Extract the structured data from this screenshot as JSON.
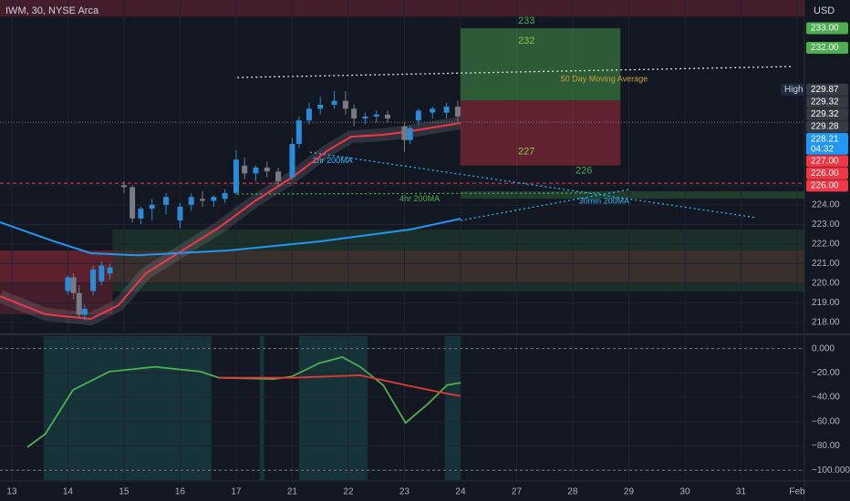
{
  "header": {
    "symbol": "IWM, 30, NYSE Arca",
    "currency": "USD"
  },
  "chart_data": [
    {
      "type": "candlestick",
      "xlim": [
        -0.21,
        14.13
      ],
      "ylim": [
        217.49,
        234.44
      ],
      "yticks": [
        {
          "value": 225,
          "label": "225.00"
        },
        {
          "value": 224,
          "label": "224.00"
        },
        {
          "value": 223,
          "label": "223.00"
        },
        {
          "value": 222,
          "label": "222.00"
        },
        {
          "value": 221,
          "label": "221.00"
        },
        {
          "value": 220,
          "label": "220.00"
        },
        {
          "value": 219,
          "label": "219.00"
        },
        {
          "value": 218,
          "label": "218.00"
        }
      ],
      "grid": true,
      "up_color": "#2a8cd8",
      "down_color": "#787b86",
      "zones": [
        {
          "x": [
            -0.21,
            14.13
          ],
          "y": [
            233.6,
            234.44
          ],
          "color": "rgba(242,54,69,0.22)"
        },
        {
          "x": [
            1.8,
            14.13
          ],
          "y": [
            219.58,
            222.73
          ],
          "color": "rgba(76,175,80,0.16)"
        },
        {
          "x": [
            -0.21,
            14.13
          ],
          "y": [
            220.04,
            221.67
          ],
          "color": "rgba(242,54,69,0.14)"
        },
        {
          "x": [
            -0.21,
            1.8
          ],
          "y": [
            218.42,
            221.67
          ],
          "color": "rgba(242,54,69,0.22)"
        },
        {
          "x": [
            8.0,
            14.13
          ],
          "y": [
            224.31,
            224.69
          ],
          "color": "rgba(76,175,80,0.25)"
        }
      ],
      "position": {
        "x": [
          8.0,
          10.85
        ],
        "entry": 229.32,
        "target": 233,
        "stop": 226,
        "target_color": "rgba(76,175,80,0.45)",
        "stop_color": "rgba(242,54,69,0.35)",
        "target_labels": [
          "233",
          "232"
        ],
        "stop_labels": [
          "227",
          "226"
        ]
      },
      "hlines": [
        {
          "value": 225.1,
          "color": "#f23645",
          "dash": "4 3"
        },
        {
          "value": 228.21,
          "color": "#787b86",
          "dash": "1 2"
        }
      ],
      "trendlines": [
        {
          "label": "50 Day Moving Average",
          "x": [
            4.02,
            13.93
          ],
          "values": [
            230.49,
            231.05
          ],
          "color": "#e0e3eb"
        },
        {
          "label": "1hr 200MA",
          "x": [
            5.32,
            13.28
          ],
          "values": [
            226.68,
            223.34
          ],
          "color": "#29b6f6"
        },
        {
          "label": "4hr 200MA",
          "x": [
            4.02,
            10.52
          ],
          "values": [
            224.55,
            224.6
          ],
          "color": "#4caf50"
        },
        {
          "label": "30min 200MA",
          "x": [
            8.0,
            11.01
          ],
          "values": [
            223.2,
            224.78
          ],
          "color": "#29b6f6"
        }
      ],
      "lines": [
        {
          "color": "#f23645",
          "x": [
            -0.21,
            0.6,
            1.41,
            1.9,
            2.39,
            3.04,
            3.69,
            4.35,
            4.99,
            5.64,
            6.05,
            6.62,
            7.02,
            8.0
          ],
          "values": [
            219.34,
            218.42,
            218.18,
            218.88,
            220.51,
            221.67,
            222.83,
            224.22,
            225.38,
            226.78,
            227.47,
            227.57,
            227.71,
            228.17
          ]
        },
        {
          "color": "#2196f3",
          "x": [
            -0.21,
            0.76,
            1.41,
            2.23,
            3.85,
            5.48,
            7.11,
            8.0
          ],
          "values": [
            223.11,
            222.13,
            221.53,
            221.43,
            221.67,
            222.13,
            222.74,
            223.29
          ]
        }
      ],
      "candles": {
        "x": [
          1.0,
          1.1,
          1.2,
          1.3,
          1.45,
          1.6,
          1.75,
          2.0,
          2.15,
          2.3,
          2.5,
          2.75,
          3.0,
          3.2,
          3.4,
          3.6,
          3.8,
          4.0,
          4.15,
          4.35,
          4.55,
          4.75,
          5.0,
          5.12,
          5.3,
          5.5,
          5.75,
          5.95,
          6.1,
          6.3,
          6.5,
          6.7,
          7.0,
          7.1,
          7.25,
          7.5,
          7.75,
          7.95
        ],
        "open": [
          219.6,
          220.3,
          219.5,
          218.4,
          219.6,
          220.1,
          220.5,
          225.0,
          224.9,
          223.3,
          223.8,
          224.0,
          223.2,
          224.0,
          224.3,
          224.2,
          224.3,
          224.6,
          226.0,
          225.6,
          225.9,
          225.7,
          225.4,
          227.1,
          228.3,
          228.9,
          229.1,
          229.3,
          228.9,
          228.4,
          228.5,
          228.6,
          228.0,
          227.3,
          228.3,
          228.7,
          228.7,
          229.0
        ],
        "high": [
          220.4,
          220.5,
          219.9,
          218.9,
          220.9,
          221.1,
          221.0,
          225.2,
          225.0,
          223.9,
          224.3,
          224.6,
          224.1,
          224.6,
          224.7,
          224.5,
          224.8,
          226.8,
          226.4,
          226.0,
          226.2,
          225.9,
          227.4,
          228.5,
          229.2,
          229.5,
          229.8,
          229.8,
          229.1,
          228.7,
          228.8,
          228.8,
          228.2,
          228.0,
          228.9,
          229.0,
          229.2,
          229.3
        ],
        "low": [
          219.4,
          219.2,
          218.2,
          218.1,
          219.4,
          219.9,
          220.2,
          224.6,
          223.1,
          223.0,
          223.2,
          223.5,
          222.8,
          223.7,
          223.9,
          223.9,
          224.1,
          224.5,
          225.3,
          225.2,
          225.4,
          224.9,
          225.3,
          226.9,
          228.1,
          228.6,
          228.9,
          228.6,
          228.0,
          228.1,
          228.2,
          228.2,
          226.7,
          227.1,
          228.1,
          228.4,
          228.4,
          228.2
        ],
        "close": [
          220.3,
          219.5,
          218.4,
          218.7,
          220.7,
          220.9,
          220.8,
          224.9,
          223.3,
          223.8,
          224.0,
          224.4,
          223.9,
          224.4,
          224.2,
          224.4,
          224.6,
          226.3,
          225.6,
          225.9,
          225.7,
          225.2,
          227.1,
          228.3,
          228.9,
          229.1,
          229.3,
          228.9,
          228.4,
          228.5,
          228.6,
          228.4,
          227.3,
          227.9,
          228.8,
          228.9,
          229.0,
          228.5
        ]
      },
      "price_labels": [
        {
          "value": 233,
          "label": "233.00",
          "color": "#4caf50"
        },
        {
          "value": 232,
          "label": "232.00",
          "color": "#4caf50"
        },
        {
          "value": 229.87,
          "label": "229.87",
          "color": "#363a45",
          "tag": "High"
        },
        {
          "value": 229.32,
          "label": "229.32",
          "color": "#363a45"
        },
        {
          "value": 229.32,
          "label": "229.32",
          "color": "#363a45"
        },
        {
          "value": 229.28,
          "label": "229.28",
          "color": "#363a45"
        },
        {
          "value": 228.21,
          "label": "228.21",
          "color": "#2196f3",
          "sub": "04:32"
        },
        {
          "value": 227,
          "label": "227.00",
          "color": "#f23645"
        },
        {
          "value": 226,
          "label": "226.00",
          "color": "#f23645"
        },
        {
          "value": 226,
          "label": "226.00",
          "color": "#f23645"
        }
      ]
    },
    {
      "type": "line",
      "xlim": [
        -0.21,
        14.13
      ],
      "ylim": [
        -108,
        10.2
      ],
      "xticks": [
        {
          "value": 0,
          "label": "13"
        },
        {
          "value": 1,
          "label": "14"
        },
        {
          "value": 2,
          "label": "15"
        },
        {
          "value": 3,
          "label": "16"
        },
        {
          "value": 4,
          "label": "17"
        },
        {
          "value": 5,
          "label": "21"
        },
        {
          "value": 6,
          "label": "22"
        },
        {
          "value": 7,
          "label": "23"
        },
        {
          "value": 8,
          "label": "24"
        },
        {
          "value": 9,
          "label": "27"
        },
        {
          "value": 10,
          "label": "28"
        },
        {
          "value": 11,
          "label": "29"
        },
        {
          "value": 12,
          "label": "30"
        },
        {
          "value": 13,
          "label": "31"
        },
        {
          "value": 14,
          "label": "Feb"
        }
      ],
      "yticks": [
        {
          "value": 0,
          "label": "0.000"
        },
        {
          "value": -20,
          "label": "−20.00"
        },
        {
          "value": -40,
          "label": "−40.00"
        },
        {
          "value": -60,
          "label": "−60.00"
        },
        {
          "value": -80,
          "label": "−80.00"
        },
        {
          "value": -100,
          "label": "−100.000"
        }
      ],
      "grid": true,
      "hlines": [
        {
          "value": 0,
          "color": "#787b86",
          "dash": "3 3"
        },
        {
          "value": -100,
          "color": "#787b86",
          "dash": "3 3"
        }
      ],
      "zones": [
        {
          "x": [
            0.57,
            3.56
          ],
          "color": "rgba(38,166,154,0.2)"
        },
        {
          "x": [
            4.42,
            4.5
          ],
          "color": "rgba(38,166,154,0.2)"
        },
        {
          "x": [
            5.12,
            6.34
          ],
          "color": "rgba(38,166,154,0.2)"
        },
        {
          "x": [
            7.72,
            8.0
          ],
          "color": "rgba(38,166,154,0.2)"
        }
      ],
      "series": [
        {
          "color": "#4caf50",
          "x": [
            0.28,
            0.6,
            1.09,
            1.74,
            2.55,
            3.37,
            3.69,
            4.67,
            4.99,
            5.48,
            5.89,
            6.21,
            6.62,
            7.02,
            7.43,
            7.76,
            8.0
          ],
          "values": [
            -81,
            -70,
            -34,
            -19,
            -15,
            -19,
            -24,
            -25,
            -23,
            -12,
            -7,
            -15,
            -30,
            -61,
            -45,
            -30,
            -28
          ]
        },
        {
          "color": "#e53935",
          "x": [
            3.69,
            4.99,
            6.21,
            7.02,
            7.76,
            8.0
          ],
          "values": [
            -24,
            -24,
            -22,
            -30,
            -37,
            -39
          ]
        }
      ]
    }
  ]
}
